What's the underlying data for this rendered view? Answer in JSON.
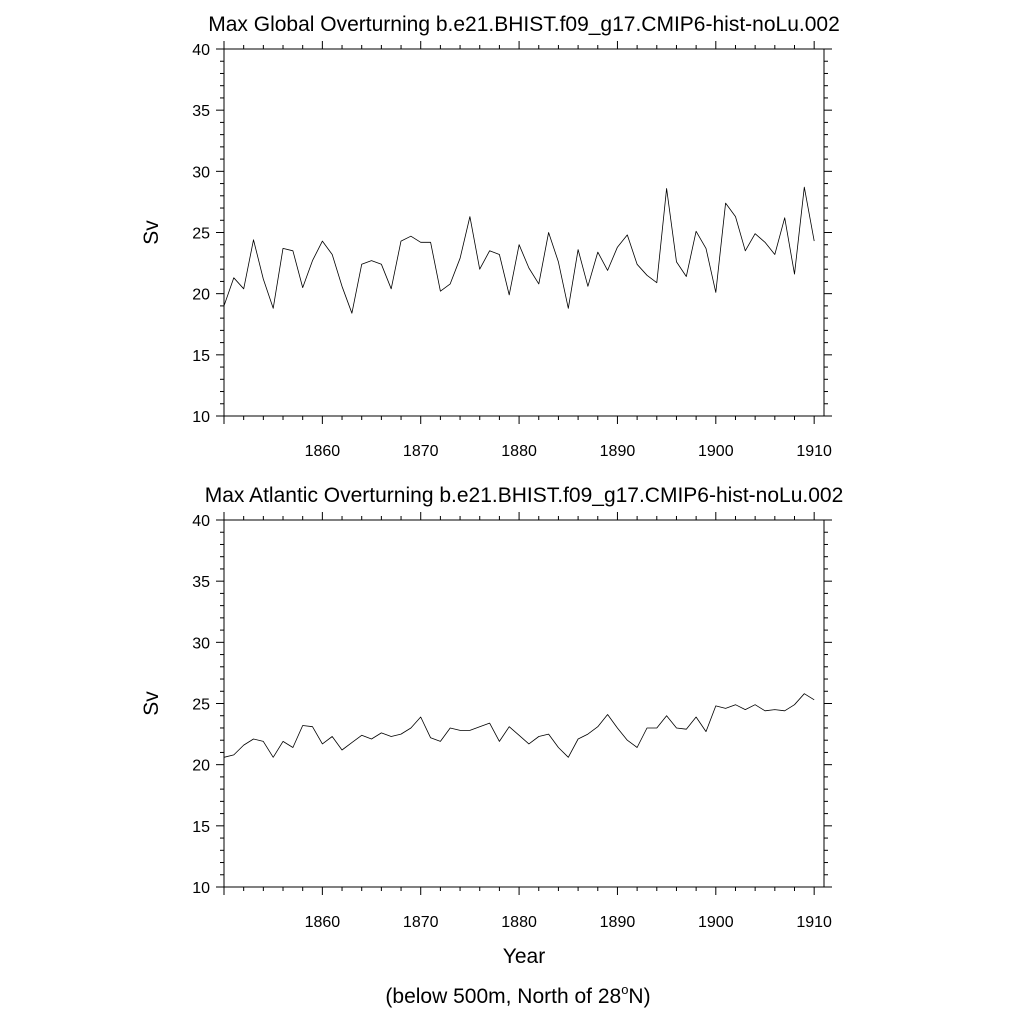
{
  "chart_data": [
    {
      "type": "line",
      "title": "Max Global Overturning b.e21.BHIST.f09_g17.CMIP6-hist-noLu.002",
      "xlabel": "",
      "ylabel": "Sv",
      "xlim": [
        1850,
        1911
      ],
      "ylim": [
        10,
        40
      ],
      "xticks": [
        1860,
        1870,
        1880,
        1890,
        1900,
        1910
      ],
      "yticks": [
        10,
        15,
        20,
        25,
        30,
        35,
        40
      ],
      "grid": false,
      "series": [
        {
          "x": [
            1850,
            1851,
            1852,
            1853,
            1854,
            1855,
            1856,
            1857,
            1858,
            1859,
            1860,
            1861,
            1862,
            1863,
            1864,
            1865,
            1866,
            1867,
            1868,
            1869,
            1870,
            1871,
            1872,
            1873,
            1874,
            1875,
            1876,
            1877,
            1878,
            1879,
            1880,
            1881,
            1882,
            1883,
            1884,
            1885,
            1886,
            1887,
            1888,
            1889,
            1890,
            1891,
            1892,
            1893,
            1894,
            1895,
            1896,
            1897,
            1898,
            1899,
            1900,
            1901,
            1902,
            1903,
            1904,
            1905,
            1906,
            1907,
            1908,
            1909,
            1910
          ],
          "values": [
            19.0,
            21.3,
            20.4,
            24.4,
            21.2,
            18.8,
            23.7,
            23.5,
            20.5,
            22.7,
            24.3,
            23.2,
            20.6,
            18.4,
            22.4,
            22.7,
            22.4,
            20.4,
            24.3,
            24.7,
            24.2,
            24.2,
            20.2,
            20.8,
            22.9,
            26.3,
            22.0,
            23.5,
            23.2,
            19.9,
            24.0,
            22.1,
            20.8,
            25.0,
            22.6,
            18.8,
            23.6,
            20.6,
            23.4,
            21.9,
            23.8,
            24.8,
            22.4,
            21.5,
            20.9,
            28.6,
            22.6,
            21.4,
            25.1,
            23.7,
            20.1,
            27.4,
            26.3,
            23.5,
            24.9,
            24.2,
            23.2,
            26.2,
            21.6,
            28.7,
            24.3
          ]
        }
      ]
    },
    {
      "type": "line",
      "title": "Max Atlantic Overturning b.e21.BHIST.f09_g17.CMIP6-hist-noLu.002",
      "xlabel": "Year",
      "ylabel": "Sv",
      "xlim": [
        1850,
        1911
      ],
      "ylim": [
        10,
        40
      ],
      "xticks": [
        1860,
        1870,
        1880,
        1890,
        1900,
        1910
      ],
      "yticks": [
        10,
        15,
        20,
        25,
        30,
        35,
        40
      ],
      "grid": false,
      "series": [
        {
          "x": [
            1850,
            1851,
            1852,
            1853,
            1854,
            1855,
            1856,
            1857,
            1858,
            1859,
            1860,
            1861,
            1862,
            1863,
            1864,
            1865,
            1866,
            1867,
            1868,
            1869,
            1870,
            1871,
            1872,
            1873,
            1874,
            1875,
            1876,
            1877,
            1878,
            1879,
            1880,
            1881,
            1882,
            1883,
            1884,
            1885,
            1886,
            1887,
            1888,
            1889,
            1890,
            1891,
            1892,
            1893,
            1894,
            1895,
            1896,
            1897,
            1898,
            1899,
            1900,
            1901,
            1902,
            1903,
            1904,
            1905,
            1906,
            1907,
            1908,
            1909,
            1910
          ],
          "values": [
            20.6,
            20.8,
            21.6,
            22.1,
            21.9,
            20.6,
            21.9,
            21.4,
            23.2,
            23.1,
            21.7,
            22.3,
            21.2,
            21.8,
            22.4,
            22.1,
            22.6,
            22.3,
            22.5,
            23.0,
            23.9,
            22.2,
            21.9,
            23.0,
            22.8,
            22.8,
            23.1,
            23.4,
            21.9,
            23.1,
            22.4,
            21.7,
            22.3,
            22.5,
            21.4,
            20.6,
            22.1,
            22.5,
            23.1,
            24.1,
            23.0,
            22.0,
            21.4,
            23.0,
            23.0,
            24.0,
            23.0,
            22.9,
            23.9,
            22.7,
            24.8,
            24.6,
            24.9,
            24.5,
            24.9,
            24.4,
            24.5,
            24.4,
            24.9,
            25.8,
            25.3
          ]
        }
      ]
    }
  ],
  "footer": {
    "pre": "(below 500m, North of 28",
    "sup": "o",
    "post": "N)"
  }
}
